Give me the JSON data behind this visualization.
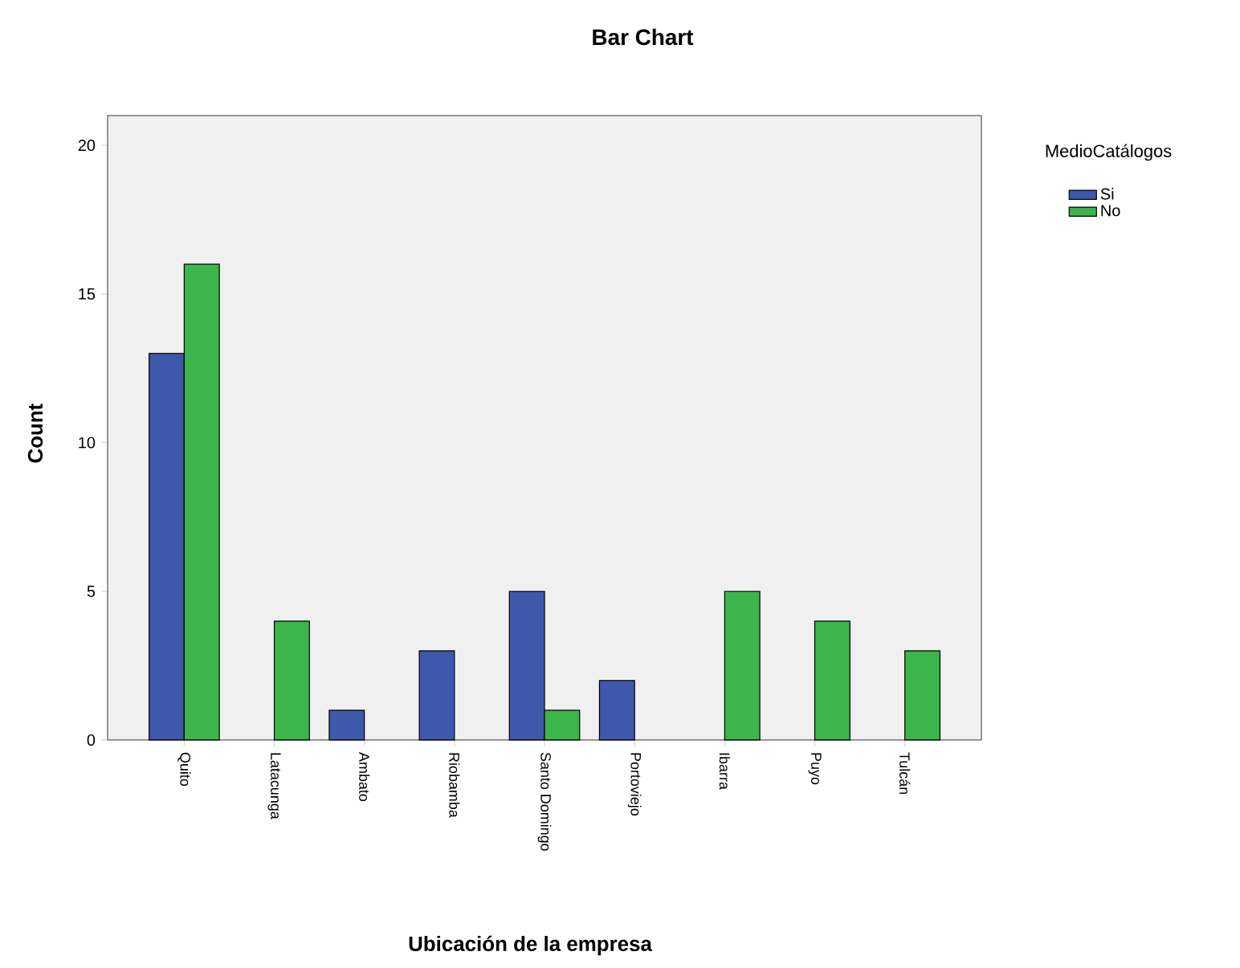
{
  "chart_data": {
    "type": "bar",
    "title": "Bar Chart",
    "xlabel": "Ubicación de la empresa",
    "ylabel": "Count",
    "legend_title": "MedioCatálogos",
    "categories": [
      "Quito",
      "Latacunga",
      "Ambato",
      "Riobamba",
      "Santo Domingo",
      "Portoviejo",
      "Ibarra",
      "Puyo",
      "Tulcán"
    ],
    "series": [
      {
        "name": "Si",
        "color": "#3e58ac",
        "values": [
          13,
          null,
          1,
          3,
          5,
          2,
          null,
          null,
          null
        ]
      },
      {
        "name": "No",
        "color": "#3cb54a",
        "values": [
          16,
          4,
          null,
          null,
          1,
          null,
          5,
          4,
          3
        ]
      }
    ],
    "ylim": [
      0,
      21
    ],
    "yticks": [
      0,
      5,
      10,
      15,
      20
    ],
    "grid": false,
    "legend": "top right"
  }
}
